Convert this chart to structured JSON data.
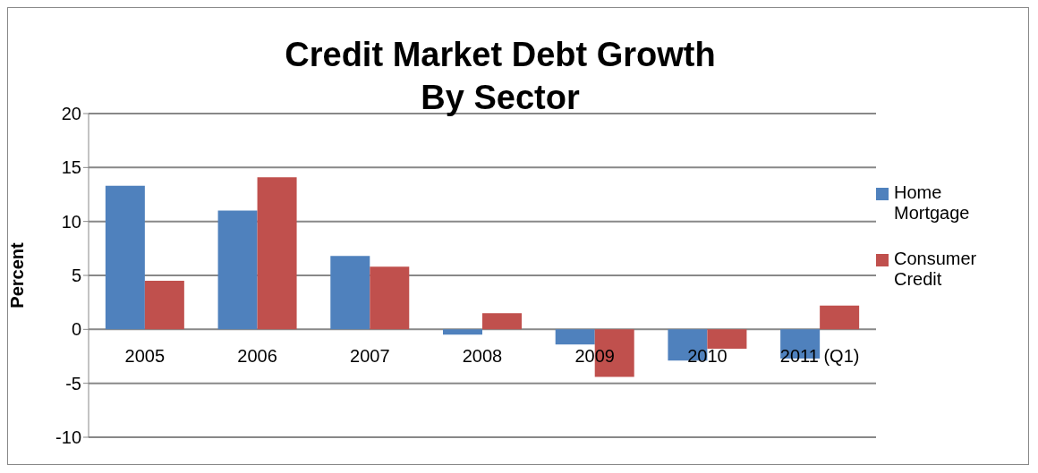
{
  "chart_data": {
    "type": "bar",
    "title": "Credit Market Debt Growth\nBy Sector",
    "ylabel": "Percent",
    "categories": [
      "2005",
      "2006",
      "2007",
      "2008",
      "2009",
      "2010",
      "2011 (Q1)"
    ],
    "series": [
      {
        "name": "Home Mortgage",
        "color": "#4f81bd",
        "values": [
          13.3,
          11.0,
          6.8,
          -0.5,
          -1.4,
          -2.9,
          -2.7
        ]
      },
      {
        "name": "Consumer Credit",
        "color": "#c0504d",
        "values": [
          4.5,
          14.1,
          5.8,
          1.5,
          -4.4,
          -1.8,
          2.2
        ]
      }
    ],
    "ylim": [
      -10,
      20
    ],
    "yticks": [
      -10,
      -5,
      0,
      5,
      10,
      15,
      20
    ],
    "grid": "y",
    "legend": "right"
  }
}
